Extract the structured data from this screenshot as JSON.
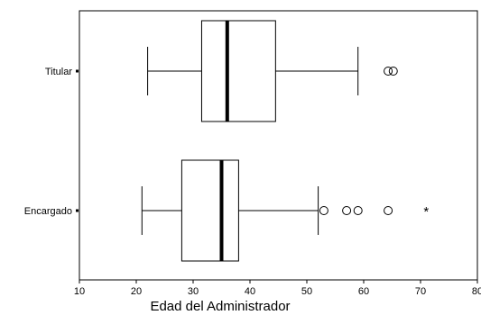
{
  "chart_data": {
    "type": "boxplot",
    "orientation": "horizontal",
    "title": "",
    "xlabel": "Edad del Administrador",
    "ylabel": "",
    "xlim": [
      10,
      80
    ],
    "x_ticks": [
      10,
      20,
      30,
      40,
      50,
      60,
      70,
      80
    ],
    "x_tick_labels": [
      "10",
      "20",
      "30",
      "40",
      "50",
      "60",
      "70",
      "80"
    ],
    "categories": [
      "Titular",
      "Encargado"
    ],
    "grid": false,
    "legend": "none",
    "boxes": [
      {
        "category": "Titular",
        "whisker_low": 22,
        "q1": 31.5,
        "median": 36,
        "q3": 44.5,
        "whisker_high": 59,
        "outliers": [
          64.3,
          65.2
        ],
        "extremes": []
      },
      {
        "category": "Encargado",
        "whisker_low": 21,
        "q1": 28,
        "median": 35,
        "q3": 38,
        "whisker_high": 52,
        "outliers": [
          53,
          57,
          59,
          64.3
        ],
        "extremes": [
          71
        ]
      }
    ]
  },
  "colors": {
    "line": "#000000",
    "background": "#ffffff"
  }
}
